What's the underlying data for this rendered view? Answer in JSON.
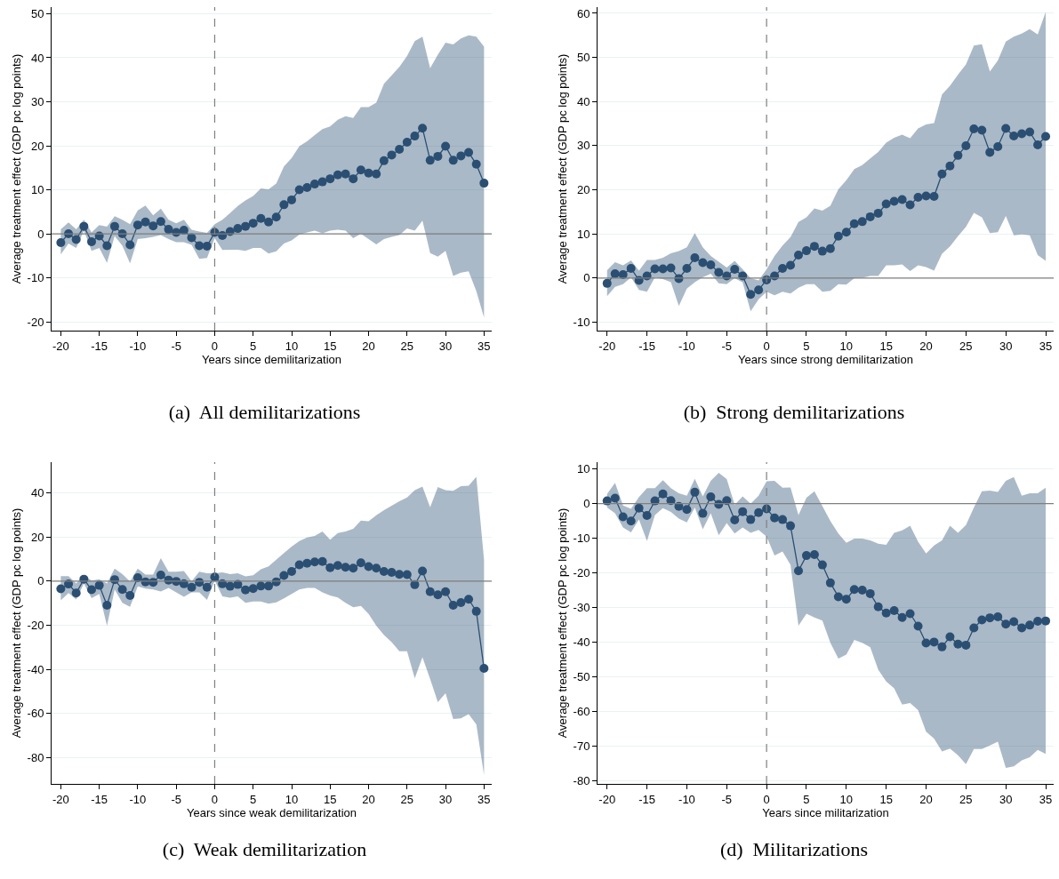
{
  "chart_data": [
    {
      "type": "line",
      "title": "(a)  All demilitarizations",
      "xlabel": "Years since demilitarization",
      "ylabel": "Average treatment effect (GDP pc log points)",
      "x": [
        -20,
        -19,
        -18,
        -17,
        -16,
        -15,
        -14,
        -13,
        -12,
        -11,
        -10,
        -9,
        -8,
        -7,
        -6,
        -5,
        -4,
        -3,
        -2,
        -1,
        0,
        1,
        2,
        3,
        4,
        5,
        6,
        7,
        8,
        9,
        10,
        11,
        12,
        13,
        14,
        15,
        16,
        17,
        18,
        19,
        20,
        21,
        22,
        23,
        24,
        25,
        26,
        27,
        28,
        29,
        30,
        31,
        32,
        33,
        34,
        35
      ],
      "series": [
        {
          "color": "#2b4f73",
          "values": [
            -2,
            0,
            -1.3,
            1.7,
            -1.8,
            -0.5,
            -2.7,
            1.7,
            0,
            -2.5,
            2,
            2.7,
            1.8,
            2.8,
            1,
            0.3,
            0.8,
            -0.9,
            -2.7,
            -2.8,
            0.3,
            -0.4,
            0.5,
            1.2,
            1.7,
            2.4,
            3.5,
            2.7,
            3.8,
            6.6,
            7.7,
            10,
            10.5,
            11.3,
            11.8,
            12.5,
            13.4,
            13.6,
            12.5,
            14.5,
            13.8,
            13.6,
            16.6,
            17.9,
            19.2,
            20.8,
            22.2,
            24,
            16.7,
            17.6,
            19.9,
            16.7,
            17.7,
            18.5,
            15.8,
            11.5
          ],
          "upper": [
            1,
            2.6,
            1,
            3.2,
            0.3,
            2,
            1.6,
            4,
            3.2,
            2.2,
            5.3,
            6.4,
            4.2,
            5.7,
            3.2,
            2.4,
            3.2,
            0.9,
            0.5,
            0.2,
            2.2,
            3.2,
            4.7,
            6.3,
            7.6,
            8.6,
            10.3,
            10.1,
            11.4,
            15.3,
            17.2,
            19.9,
            21,
            22.4,
            23.8,
            24.4,
            25.9,
            26.7,
            26.3,
            28.8,
            28.8,
            29.8,
            34.1,
            36,
            37.9,
            40.4,
            43.8,
            44.8,
            37.6,
            40.7,
            43.4,
            43,
            44.4,
            45.1,
            44.8,
            42.5
          ],
          "lower": [
            -4.7,
            -2.2,
            -3.2,
            0.7,
            -3.9,
            -3.2,
            -6.6,
            -0.5,
            -2.7,
            -6.7,
            -1.2,
            -1,
            -0.7,
            -0.3,
            -1.2,
            -1.9,
            -1.9,
            -2.5,
            -5.7,
            -5.5,
            -1,
            -3.7,
            -3.6,
            -3.6,
            -3.9,
            -3.2,
            -3.2,
            -4.5,
            -4,
            -2.2,
            -1.5,
            -0.2,
            0.3,
            0.7,
            0.1,
            0.7,
            0.9,
            0.7,
            -1,
            0,
            -1.2,
            -2.4,
            -1.2,
            -0.7,
            -0.3,
            1.2,
            0.7,
            3,
            -4.4,
            -5.2,
            -3.9,
            -9.6,
            -8.8,
            -8.5,
            -13,
            -19
          ]
        }
      ],
      "xlim": [
        -21.2,
        36
      ],
      "xticks": [
        -20,
        -15,
        -10,
        -5,
        0,
        5,
        10,
        15,
        20,
        25,
        30,
        35
      ],
      "ylim": [
        -22,
        51.5
      ],
      "yticks": [
        -20,
        -10,
        0,
        10,
        20,
        30,
        40,
        50
      ],
      "grid": "y",
      "marker": "circle",
      "ref_lines": [
        {
          "axis": "y",
          "value": 0,
          "color": "#7f7f7f",
          "line_style": "solid"
        },
        {
          "axis": "x",
          "value": 0,
          "color": "#7f7f7f",
          "line_style": "dashed"
        }
      ]
    },
    {
      "type": "line",
      "title": "(b)  Strong demilitarizations",
      "xlabel": "Years since strong demilitarization",
      "ylabel": "Average treatment effect (GDP pc log points)",
      "x": [
        -20,
        -19,
        -18,
        -17,
        -16,
        -15,
        -14,
        -13,
        -12,
        -11,
        -10,
        -9,
        -8,
        -7,
        -6,
        -5,
        -4,
        -3,
        -2,
        -1,
        0,
        1,
        2,
        3,
        4,
        5,
        6,
        7,
        8,
        9,
        10,
        11,
        12,
        13,
        14,
        15,
        16,
        17,
        18,
        19,
        20,
        21,
        22,
        23,
        24,
        25,
        26,
        27,
        28,
        29,
        30,
        31,
        32,
        33,
        34,
        35
      ],
      "series": [
        {
          "color": "#2b4f73",
          "values": [
            -1.2,
            1,
            0.8,
            2.2,
            -0.5,
            0.5,
            2.1,
            2.1,
            2.3,
            -0.1,
            2.2,
            4.6,
            3.5,
            3,
            1.3,
            0.5,
            2,
            0.5,
            -3.7,
            -2.7,
            -0.4,
            0.5,
            2.2,
            2.9,
            5.2,
            6.2,
            7.2,
            6.1,
            6.7,
            9.5,
            10.4,
            12.3,
            12.8,
            13.9,
            14.7,
            16.8,
            17.4,
            17.8,
            16.6,
            18.3,
            18.6,
            18.5,
            23.6,
            25.4,
            27.8,
            30,
            33.8,
            33.5,
            28.5,
            29.8,
            33.9,
            32.2,
            32.7,
            33.1,
            30.2,
            32.1
          ],
          "upper": [
            1.8,
            3.6,
            2.9,
            4,
            1.7,
            4.1,
            4.1,
            4.6,
            5.6,
            6.1,
            7,
            10.2,
            7,
            5,
            3.7,
            2.4,
            3.9,
            2,
            0,
            -0.5,
            2,
            5,
            7.4,
            9.3,
            12.7,
            13.8,
            15.8,
            15.3,
            16.4,
            20.1,
            22.2,
            24.7,
            25.6,
            27.1,
            28.6,
            30.7,
            31.8,
            32.5,
            31.7,
            33.9,
            34.8,
            35.1,
            41.6,
            43.6,
            46.1,
            48.4,
            52.7,
            53,
            46.8,
            49.3,
            53.6,
            54.7,
            55.4,
            56.4,
            55.2,
            60.3
          ],
          "lower": [
            -4.1,
            -2,
            -1.4,
            0.2,
            -2.7,
            -3.1,
            0.2,
            -0.2,
            -0.9,
            -6.3,
            -2.4,
            -0.9,
            0.2,
            1,
            -1.2,
            -1.4,
            0,
            -1,
            -7.5,
            -4.8,
            -3.1,
            -3.9,
            -3.1,
            -3.5,
            -2.2,
            -1.4,
            -1.4,
            -3.1,
            -2.9,
            -1.4,
            -1.5,
            0,
            0.1,
            0.5,
            0.5,
            2.9,
            2.9,
            3.1,
            1.6,
            2.9,
            2.5,
            1.7,
            5.5,
            7.2,
            9.5,
            11.6,
            14.8,
            13.8,
            10.2,
            10.4,
            14.1,
            9.7,
            9.9,
            9.7,
            5.2,
            3.9
          ]
        }
      ],
      "xlim": [
        -21.2,
        36
      ],
      "xticks": [
        -20,
        -15,
        -10,
        -5,
        0,
        5,
        10,
        15,
        20,
        25,
        30,
        35
      ],
      "ylim": [
        -11.9,
        61.4
      ],
      "yticks": [
        -10,
        0,
        10,
        20,
        30,
        40,
        50,
        60
      ],
      "grid": "y",
      "marker": "circle",
      "ref_lines": [
        {
          "axis": "y",
          "value": 0,
          "color": "#7f7f7f",
          "line_style": "solid"
        },
        {
          "axis": "x",
          "value": 0,
          "color": "#7f7f7f",
          "line_style": "dashed"
        }
      ]
    },
    {
      "type": "line",
      "title": "(c)  Weak demilitarization",
      "xlabel": "Years since weak demilitarization",
      "ylabel": "Average treatment effect (GDP pc log points)",
      "x": [
        -20,
        -19,
        -18,
        -17,
        -16,
        -15,
        -14,
        -13,
        -12,
        -11,
        -10,
        -9,
        -8,
        -7,
        -6,
        -5,
        -4,
        -3,
        -2,
        -1,
        0,
        1,
        2,
        3,
        4,
        5,
        6,
        7,
        8,
        9,
        10,
        11,
        12,
        13,
        14,
        15,
        16,
        17,
        18,
        19,
        20,
        21,
        22,
        23,
        24,
        25,
        26,
        27,
        28,
        29,
        30,
        31,
        32,
        33,
        34,
        35
      ],
      "series": [
        {
          "color": "#2b4f73",
          "values": [
            -3.5,
            -1.3,
            -5.4,
            0.9,
            -3.9,
            -1.9,
            -10.9,
            0.7,
            -3.8,
            -6.5,
            1.6,
            -0.3,
            -0.5,
            2.8,
            0.5,
            -0.1,
            -1.2,
            -2.8,
            -0.5,
            -2.8,
            1.9,
            -1.2,
            -2.3,
            -1.5,
            -4,
            -3.4,
            -2.2,
            -2.2,
            -0.3,
            2.6,
            4.4,
            7.4,
            8.1,
            8.7,
            8.9,
            6.1,
            7.1,
            6.3,
            5.9,
            8.3,
            6.6,
            5.9,
            4.4,
            4,
            3.1,
            3,
            -1.6,
            4.6,
            -4.8,
            -6.2,
            -4.8,
            -10.9,
            -9.7,
            -8.2,
            -13.7,
            -39.6
          ],
          "upper": [
            2.3,
            2.3,
            -1.1,
            2.7,
            0.3,
            0.9,
            -1.1,
            5.7,
            3.2,
            -0.1,
            5.7,
            3,
            3,
            10.4,
            4.3,
            4.3,
            4.6,
            0,
            4.3,
            3.6,
            3.6,
            4,
            3.2,
            3.6,
            2.2,
            2.7,
            5.4,
            6.7,
            9.7,
            12.8,
            15.7,
            18.2,
            19.8,
            20.5,
            22.5,
            18.8,
            21.8,
            22.5,
            23.8,
            27.5,
            27.2,
            29.9,
            32.2,
            34.2,
            36.3,
            38,
            41.3,
            42.9,
            33.5,
            42.7,
            41.3,
            41,
            43.1,
            43.3,
            47.3,
            9.7
          ],
          "lower": [
            -8.7,
            -5.4,
            -8.3,
            -1.1,
            -7.7,
            -5.8,
            -20.2,
            -3.8,
            -9.8,
            -11.6,
            -2.4,
            -3.4,
            -3.8,
            -4.7,
            -3.1,
            -5.1,
            -7.1,
            -5.1,
            -5.1,
            -8.5,
            0.3,
            -6.9,
            -7.5,
            -6.9,
            -9.8,
            -9.2,
            -9.2,
            -10.2,
            -9.6,
            -7.8,
            -5.8,
            -3.8,
            -3.1,
            -3.1,
            -5.1,
            -6.5,
            -7.4,
            -9.8,
            -11.8,
            -11.2,
            -14.9,
            -20.2,
            -24.4,
            -27.7,
            -31.8,
            -31.8,
            -44.1,
            -34.5,
            -44.4,
            -54.9,
            -50.9,
            -62.6,
            -62.3,
            -60.3,
            -65,
            -88
          ]
        }
      ],
      "xlim": [
        -21.2,
        36
      ],
      "xticks": [
        -20,
        -15,
        -10,
        -5,
        0,
        5,
        10,
        15,
        20,
        25,
        30,
        35
      ],
      "ylim": [
        -92,
        54
      ],
      "yticks": [
        -80,
        -60,
        -40,
        -20,
        0,
        20,
        40
      ],
      "grid": "y",
      "marker": "circle",
      "ref_lines": [
        {
          "axis": "y",
          "value": 0,
          "color": "#7f7f7f",
          "line_style": "solid"
        },
        {
          "axis": "x",
          "value": 0,
          "color": "#7f7f7f",
          "line_style": "dashed"
        }
      ]
    },
    {
      "type": "line",
      "title": "(d)  Militarizations",
      "xlabel": "Years since militarization",
      "ylabel": "Average treatment effect (GDP pc log points)",
      "x": [
        -20,
        -19,
        -18,
        -17,
        -16,
        -15,
        -14,
        -13,
        -12,
        -11,
        -10,
        -9,
        -8,
        -7,
        -6,
        -5,
        -4,
        -3,
        -2,
        -1,
        0,
        1,
        2,
        3,
        4,
        5,
        6,
        7,
        8,
        9,
        10,
        11,
        12,
        13,
        14,
        15,
        16,
        17,
        18,
        19,
        20,
        21,
        22,
        23,
        24,
        25,
        26,
        27,
        28,
        29,
        30,
        31,
        32,
        33,
        34,
        35
      ],
      "series": [
        {
          "color": "#2b4f73",
          "values": [
            0.8,
            1.6,
            -3.8,
            -5,
            -1.3,
            -3.4,
            0.8,
            2.8,
            0.9,
            -0.8,
            -1.7,
            3.3,
            -2.8,
            2,
            -0.2,
            0.9,
            -4.7,
            -2.3,
            -4.6,
            -2.6,
            -1.5,
            -4.1,
            -4.6,
            -6.4,
            -19.4,
            -15,
            -14.7,
            -17.7,
            -22.9,
            -26.9,
            -27.6,
            -24.8,
            -25,
            -26,
            -29.8,
            -31.6,
            -30.9,
            -32.9,
            -31.8,
            -35.4,
            -40.3,
            -40,
            -41.4,
            -38.5,
            -40.6,
            -40.9,
            -35.9,
            -33.6,
            -33,
            -32.7,
            -34.8,
            -34.1,
            -35.9,
            -35.1,
            -34,
            -33.9
          ],
          "upper": [
            2.8,
            6,
            -0.5,
            -1.5,
            1.9,
            4.5,
            4.5,
            6.8,
            4.5,
            3,
            2.3,
            7.2,
            2.1,
            6.6,
            8.9,
            7.1,
            -0.3,
            2.1,
            0,
            2.3,
            6.5,
            6.6,
            4.6,
            4.7,
            -3.3,
            1.7,
            3.6,
            -0.7,
            -5,
            -8.6,
            -11.3,
            -10.1,
            -10.1,
            -10.6,
            -11.6,
            -11.9,
            -8.4,
            -7.7,
            -6.4,
            -11,
            -14.4,
            -12.1,
            -10.6,
            -6.4,
            -8.4,
            -6.2,
            -1.1,
            3.6,
            3.8,
            3.4,
            6.6,
            7.7,
            2.3,
            3,
            3,
            4.6
          ],
          "lower": [
            -1.1,
            -2.8,
            -6.9,
            -8.3,
            -4.6,
            -10.8,
            -3.3,
            -1.3,
            -2.4,
            -4.3,
            -5.4,
            -1.1,
            -7.4,
            -2.8,
            -9.1,
            -5.6,
            -8.6,
            -6.9,
            -8.4,
            -7.6,
            -9.5,
            -15,
            -13.8,
            -17.7,
            -35.3,
            -31.8,
            -32.9,
            -33.8,
            -40.2,
            -44.8,
            -43.6,
            -39.4,
            -40.2,
            -41.5,
            -48,
            -51.4,
            -53.4,
            -58.1,
            -57.6,
            -59.7,
            -65.9,
            -67.9,
            -71.6,
            -70.8,
            -72.7,
            -75.3,
            -70.9,
            -70.9,
            -69.9,
            -68.8,
            -76.4,
            -75.9,
            -74.2,
            -73.3,
            -71.2,
            -72.3
          ]
        }
      ],
      "xlim": [
        -21.2,
        36
      ],
      "xticks": [
        -20,
        -15,
        -10,
        -5,
        0,
        5,
        10,
        15,
        20,
        25,
        30,
        35
      ],
      "ylim": [
        -81,
        12
      ],
      "yticks": [
        -80,
        -70,
        -60,
        -50,
        -40,
        -30,
        -20,
        -10,
        0,
        10
      ],
      "grid": "y",
      "marker": "circle",
      "ref_lines": [
        {
          "axis": "y",
          "value": 0,
          "color": "#7f7f7f",
          "line_style": "solid"
        },
        {
          "axis": "x",
          "value": 0,
          "color": "#7f7f7f",
          "line_style": "dashed"
        }
      ]
    }
  ]
}
